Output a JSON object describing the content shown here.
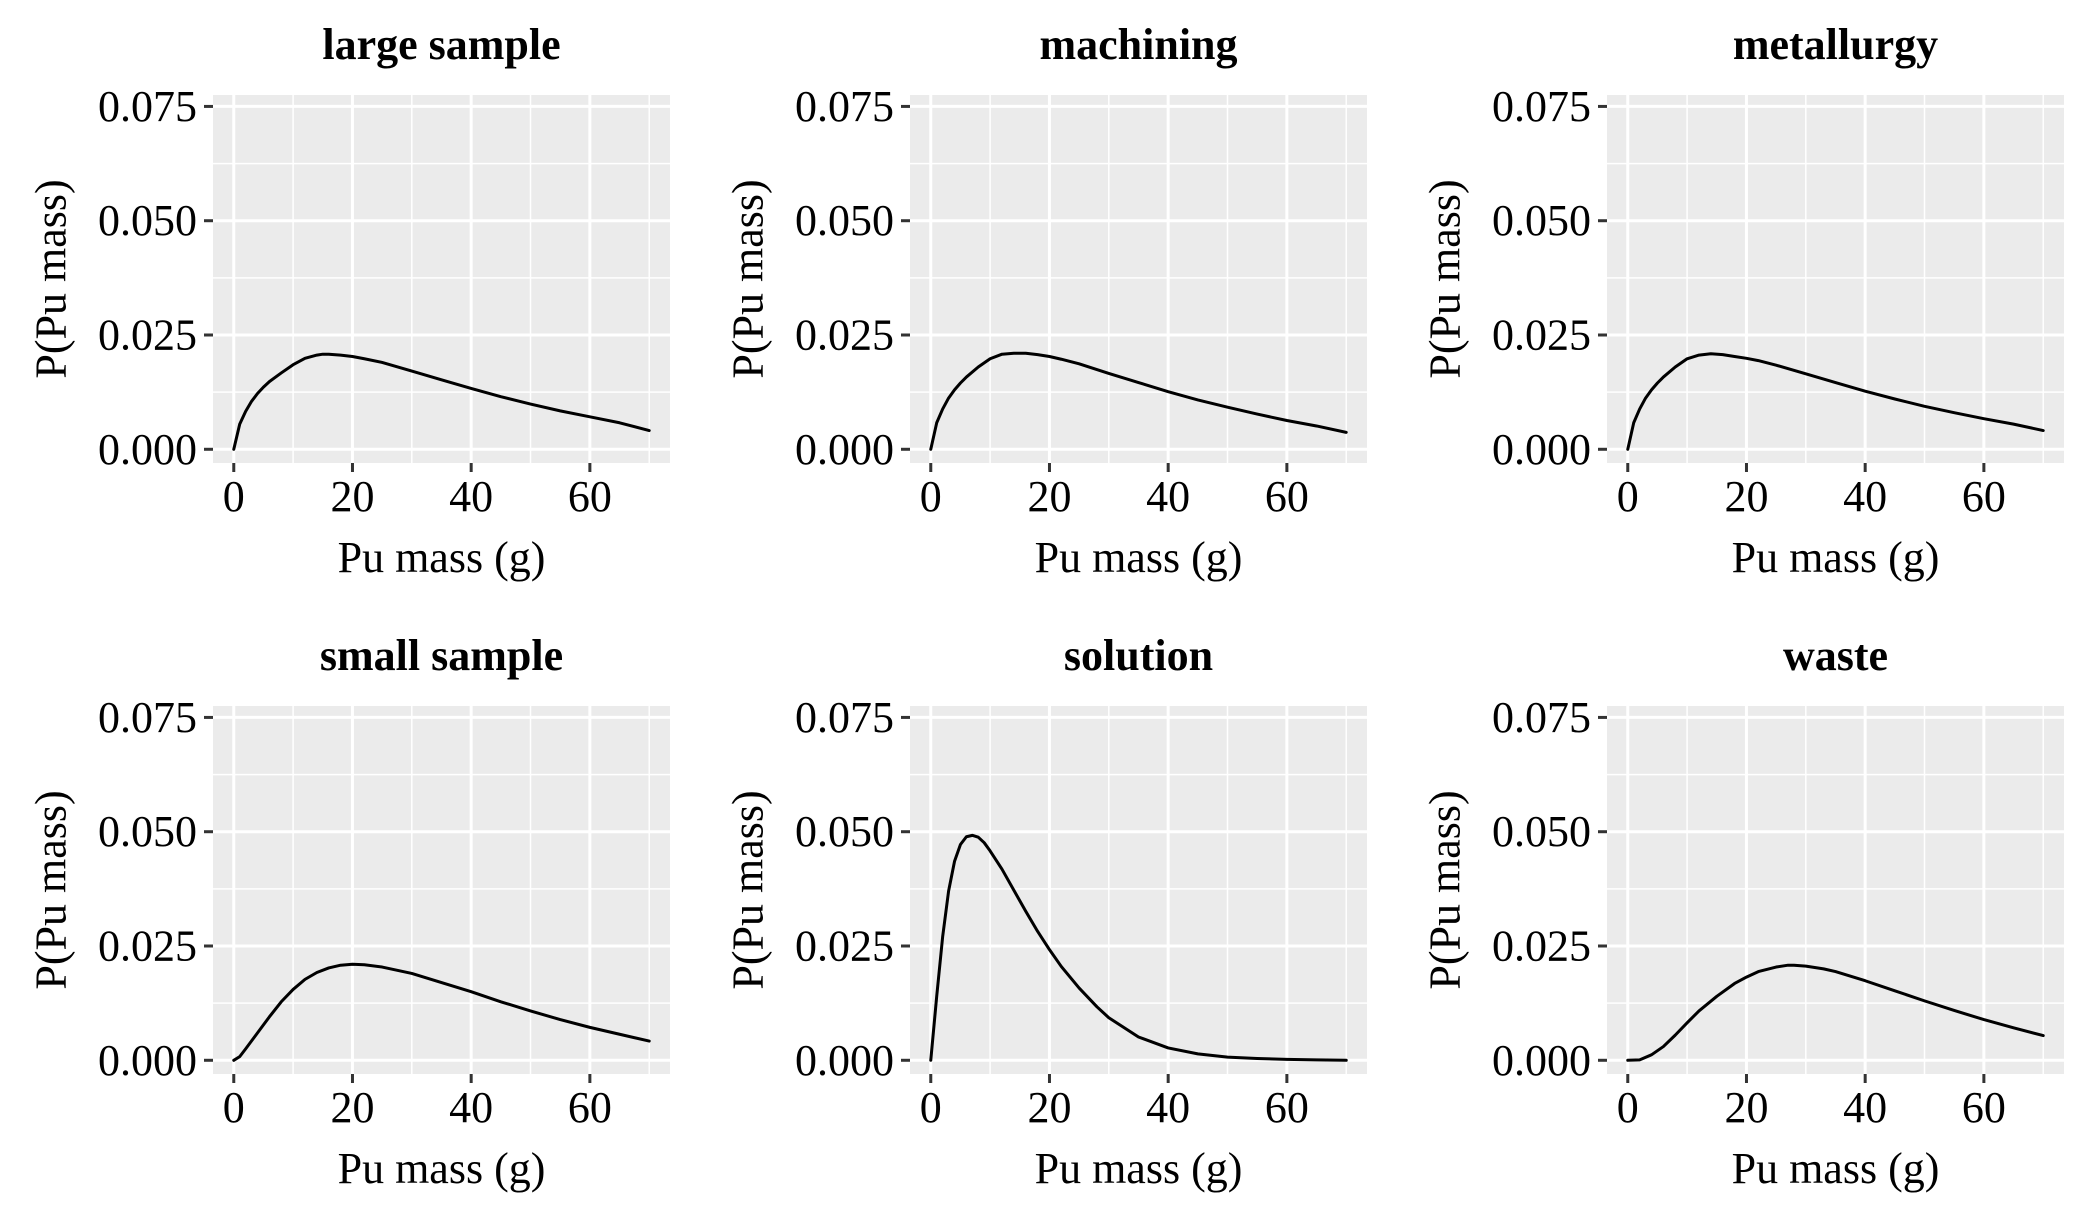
{
  "figure": {
    "panel_bg": "#ebebeb",
    "grid_color": "#ffffff",
    "line_color": "#000000"
  },
  "chart_data": [
    {
      "type": "line",
      "title": "large sample",
      "xlabel": "Pu mass (g)",
      "ylabel": "P(Pu mass)",
      "xlim": [
        -3.5,
        73.5
      ],
      "ylim": [
        -0.003,
        0.0775
      ],
      "xticks": [
        0,
        20,
        40,
        60
      ],
      "yticks": [
        0.0,
        0.025,
        0.05,
        0.075
      ],
      "xtick_labels": [
        "0",
        "20",
        "40",
        "60"
      ],
      "ytick_labels": [
        "0.000",
        "0.025",
        "0.050",
        "0.075"
      ],
      "grid": true,
      "series": [
        {
          "x": [
            0,
            1,
            2,
            3,
            4,
            5,
            6,
            8,
            10,
            12,
            14,
            15,
            16,
            18,
            20,
            22,
            25,
            30,
            35,
            40,
            45,
            50,
            55,
            60,
            65,
            70
          ],
          "y": [
            0.0,
            0.0055,
            0.0083,
            0.0105,
            0.0122,
            0.0136,
            0.0148,
            0.0167,
            0.0185,
            0.0199,
            0.0206,
            0.0208,
            0.0208,
            0.0206,
            0.0203,
            0.0198,
            0.019,
            0.0171,
            0.0152,
            0.0133,
            0.0115,
            0.0099,
            0.0084,
            0.0071,
            0.0058,
            0.0041
          ]
        }
      ]
    },
    {
      "type": "line",
      "title": "machining",
      "xlabel": "Pu mass (g)",
      "ylabel": "P(Pu mass)",
      "xlim": [
        -3.5,
        73.5
      ],
      "ylim": [
        -0.003,
        0.0775
      ],
      "xticks": [
        0,
        20,
        40,
        60
      ],
      "yticks": [
        0.0,
        0.025,
        0.05,
        0.075
      ],
      "xtick_labels": [
        "0",
        "20",
        "40",
        "60"
      ],
      "ytick_labels": [
        "0.000",
        "0.025",
        "0.050",
        "0.075"
      ],
      "grid": true,
      "series": [
        {
          "x": [
            0,
            1,
            2,
            3,
            4,
            5,
            6,
            8,
            10,
            12,
            14,
            16,
            18,
            20,
            22,
            25,
            30,
            35,
            40,
            45,
            50,
            55,
            60,
            65,
            70
          ],
          "y": [
            0.0,
            0.0058,
            0.0088,
            0.0112,
            0.013,
            0.0145,
            0.0158,
            0.018,
            0.0198,
            0.0208,
            0.021,
            0.021,
            0.0207,
            0.0203,
            0.0197,
            0.0187,
            0.0166,
            0.0146,
            0.0126,
            0.0108,
            0.0092,
            0.0077,
            0.0063,
            0.0051,
            0.0037
          ]
        }
      ]
    },
    {
      "type": "line",
      "title": "metallurgy",
      "xlabel": "Pu mass (g)",
      "ylabel": "P(Pu mass)",
      "xlim": [
        -3.5,
        73.5
      ],
      "ylim": [
        -0.003,
        0.0775
      ],
      "xticks": [
        0,
        20,
        40,
        60
      ],
      "yticks": [
        0.0,
        0.025,
        0.05,
        0.075
      ],
      "xtick_labels": [
        "0",
        "20",
        "40",
        "60"
      ],
      "ytick_labels": [
        "0.000",
        "0.025",
        "0.050",
        "0.075"
      ],
      "grid": true,
      "series": [
        {
          "x": [
            0,
            1,
            2,
            3,
            4,
            5,
            6,
            8,
            10,
            12,
            14,
            16,
            18,
            20,
            22,
            25,
            30,
            35,
            40,
            45,
            50,
            55,
            60,
            65,
            70
          ],
          "y": [
            0.0,
            0.0058,
            0.0088,
            0.0112,
            0.013,
            0.0145,
            0.0158,
            0.018,
            0.0198,
            0.0206,
            0.0209,
            0.0207,
            0.0203,
            0.0199,
            0.0194,
            0.0184,
            0.0165,
            0.0146,
            0.0127,
            0.011,
            0.0094,
            0.008,
            0.0067,
            0.0055,
            0.0041
          ]
        }
      ]
    },
    {
      "type": "line",
      "title": "small sample",
      "xlabel": "Pu mass (g)",
      "ylabel": "P(Pu mass)",
      "xlim": [
        -3.5,
        73.5
      ],
      "ylim": [
        -0.003,
        0.0775
      ],
      "xticks": [
        0,
        20,
        40,
        60
      ],
      "yticks": [
        0.0,
        0.025,
        0.05,
        0.075
      ],
      "xtick_labels": [
        "0",
        "20",
        "40",
        "60"
      ],
      "ytick_labels": [
        "0.000",
        "0.025",
        "0.050",
        "0.075"
      ],
      "grid": true,
      "series": [
        {
          "x": [
            0,
            1,
            2,
            4,
            6,
            8,
            10,
            12,
            14,
            16,
            18,
            20,
            22,
            25,
            30,
            35,
            40,
            45,
            50,
            55,
            60,
            65,
            70
          ],
          "y": [
            0.0,
            0.0008,
            0.0025,
            0.006,
            0.0095,
            0.0128,
            0.0155,
            0.0177,
            0.0192,
            0.0202,
            0.0208,
            0.021,
            0.0209,
            0.0204,
            0.019,
            0.017,
            0.015,
            0.0128,
            0.0108,
            0.0089,
            0.0072,
            0.0057,
            0.0042
          ]
        }
      ]
    },
    {
      "type": "line",
      "title": "solution",
      "xlabel": "Pu mass (g)",
      "ylabel": "P(Pu mass)",
      "xlim": [
        -3.5,
        73.5
      ],
      "ylim": [
        -0.003,
        0.0775
      ],
      "xticks": [
        0,
        20,
        40,
        60
      ],
      "yticks": [
        0.0,
        0.025,
        0.05,
        0.075
      ],
      "xtick_labels": [
        "0",
        "20",
        "40",
        "60"
      ],
      "ytick_labels": [
        "0.000",
        "0.025",
        "0.050",
        "0.075"
      ],
      "grid": true,
      "series": [
        {
          "x": [
            0,
            1,
            2,
            3,
            4,
            5,
            6,
            7,
            8,
            9,
            10,
            12,
            14,
            16,
            18,
            20,
            22,
            25,
            28,
            30,
            35,
            40,
            45,
            50,
            55,
            60,
            65,
            70
          ],
          "y": [
            0.0,
            0.014,
            0.027,
            0.037,
            0.0435,
            0.0472,
            0.0489,
            0.0492,
            0.0488,
            0.0476,
            0.0458,
            0.0418,
            0.0372,
            0.0326,
            0.0282,
            0.0242,
            0.0205,
            0.0158,
            0.0117,
            0.0093,
            0.0051,
            0.0027,
            0.0014,
            0.0007,
            0.0004,
            0.0002,
            0.0001,
            0.0
          ]
        }
      ]
    },
    {
      "type": "line",
      "title": "waste",
      "xlabel": "Pu mass (g)",
      "ylabel": "P(Pu mass)",
      "xlim": [
        -3.5,
        73.5
      ],
      "ylim": [
        -0.003,
        0.0775
      ],
      "xticks": [
        0,
        20,
        40,
        60
      ],
      "yticks": [
        0.0,
        0.025,
        0.05,
        0.075
      ],
      "xtick_labels": [
        "0",
        "20",
        "40",
        "60"
      ],
      "ytick_labels": [
        "0.000",
        "0.025",
        "0.050",
        "0.075"
      ],
      "grid": true,
      "series": [
        {
          "x": [
            0,
            2,
            4,
            6,
            8,
            10,
            12,
            15,
            18,
            20,
            22,
            25,
            27,
            28,
            30,
            33,
            35,
            40,
            45,
            50,
            55,
            60,
            65,
            70
          ],
          "y": [
            0.0,
            0.0001,
            0.0012,
            0.003,
            0.0055,
            0.0082,
            0.0108,
            0.014,
            0.0168,
            0.0182,
            0.0194,
            0.0204,
            0.0208,
            0.0208,
            0.0206,
            0.02,
            0.0194,
            0.0174,
            0.0152,
            0.013,
            0.0109,
            0.0089,
            0.0071,
            0.0054
          ]
        }
      ]
    }
  ]
}
